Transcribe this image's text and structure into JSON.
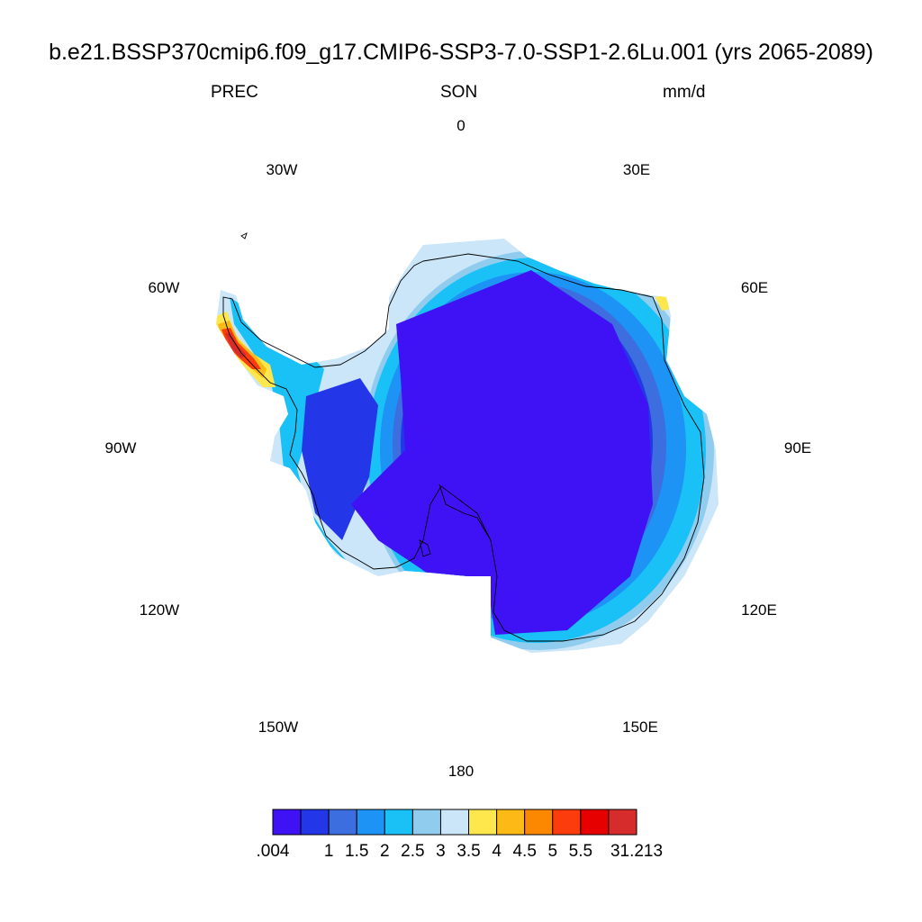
{
  "title": "b.e21.BSSP370cmip6.f09_g17.CMIP6-SSP3-7.0-SSP1-2.6Lu.001 (yrs 2065-2089)",
  "left_string": "PREC",
  "center_string": "SON",
  "right_string": "mm/d",
  "longitude_labels": [
    "0",
    "30E",
    "60E",
    "90E",
    "120E",
    "150E",
    "180",
    "150W",
    "120W",
    "90W",
    "60W",
    "30W"
  ],
  "colorbar": {
    "colors": [
      "#3f12f5",
      "#2337e8",
      "#3c6ee0",
      "#1c93f5",
      "#19c1f7",
      "#8fccee",
      "#cbe6f8",
      "#fde74c",
      "#fbba15",
      "#fc8700",
      "#fd3c0e",
      "#e60000",
      "#d62c2c"
    ],
    "labels": [
      ".004",
      "1",
      "1.5",
      "2",
      "2.5",
      "3",
      "3.5",
      "4",
      "4.5",
      "5",
      "5.5",
      "31.213"
    ]
  }
}
